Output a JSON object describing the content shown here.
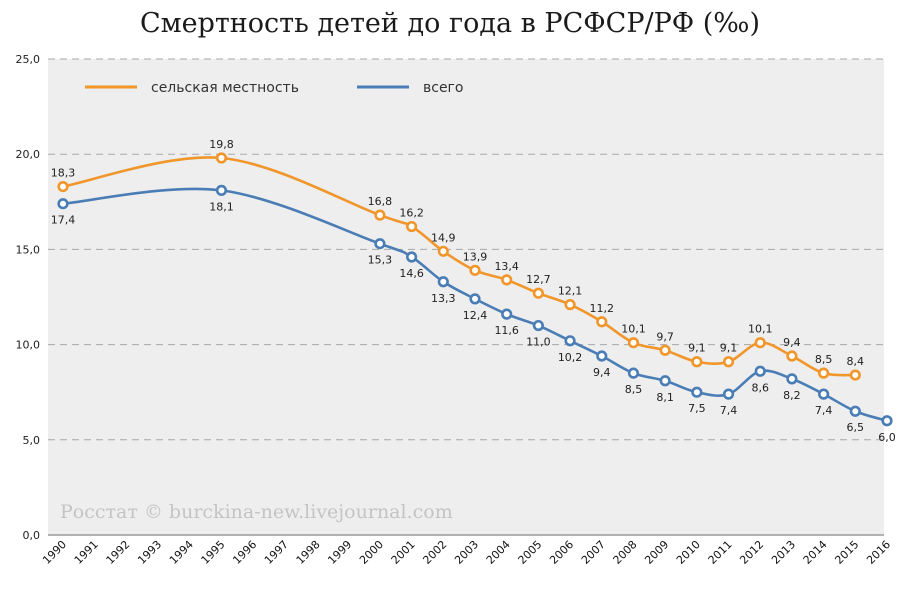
{
  "chart_data": {
    "type": "line",
    "title": "Смертность детей до года в РСФСР/РФ (‰)",
    "xlabel": "",
    "ylabel": "",
    "ylim": [
      0,
      25
    ],
    "yticks": [
      "0,0",
      "5,0",
      "10,0",
      "15,0",
      "20,0",
      "25,0"
    ],
    "categories": [
      "1990",
      "1991",
      "1992",
      "1993",
      "1994",
      "1995",
      "1996",
      "1997",
      "1998",
      "1999",
      "2000",
      "2001",
      "2002",
      "2003",
      "2004",
      "2005",
      "2006",
      "2007",
      "2008",
      "2009",
      "2010",
      "2011",
      "2012",
      "2013",
      "2014",
      "2015",
      "2016"
    ],
    "grid": true,
    "legend_position": "top-left",
    "watermark": "Росстат © burckina-new.livejournal.com",
    "series": [
      {
        "name": "сельская местность",
        "color": "#f0962a",
        "label_position": "above",
        "points": [
          {
            "x": "1990",
            "y": 18.3,
            "label": "18,3"
          },
          {
            "x": "1995",
            "y": 19.8,
            "label": "19,8"
          },
          {
            "x": "2000",
            "y": 16.8,
            "label": "16,8"
          },
          {
            "x": "2001",
            "y": 16.2,
            "label": "16,2"
          },
          {
            "x": "2002",
            "y": 14.9,
            "label": "14,9"
          },
          {
            "x": "2003",
            "y": 13.9,
            "label": "13,9"
          },
          {
            "x": "2004",
            "y": 13.4,
            "label": "13,4"
          },
          {
            "x": "2005",
            "y": 12.7,
            "label": "12,7"
          },
          {
            "x": "2006",
            "y": 12.1,
            "label": "12,1"
          },
          {
            "x": "2007",
            "y": 11.2,
            "label": "11,2"
          },
          {
            "x": "2008",
            "y": 10.1,
            "label": "10,1"
          },
          {
            "x": "2009",
            "y": 9.7,
            "label": "9,7"
          },
          {
            "x": "2010",
            "y": 9.1,
            "label": "9,1"
          },
          {
            "x": "2011",
            "y": 9.1,
            "label": "9,1"
          },
          {
            "x": "2012",
            "y": 10.1,
            "label": "10,1"
          },
          {
            "x": "2013",
            "y": 9.4,
            "label": "9,4"
          },
          {
            "x": "2014",
            "y": 8.5,
            "label": "8,5"
          },
          {
            "x": "2015",
            "y": 8.4,
            "label": "8,4"
          }
        ]
      },
      {
        "name": "всего",
        "color": "#4a7db5",
        "label_position": "below",
        "points": [
          {
            "x": "1990",
            "y": 17.4,
            "label": "17,4"
          },
          {
            "x": "1995",
            "y": 18.1,
            "label": "18,1"
          },
          {
            "x": "2000",
            "y": 15.3,
            "label": "15,3"
          },
          {
            "x": "2001",
            "y": 14.6,
            "label": "14,6"
          },
          {
            "x": "2002",
            "y": 13.3,
            "label": "13,3"
          },
          {
            "x": "2003",
            "y": 12.4,
            "label": "12,4"
          },
          {
            "x": "2004",
            "y": 11.6,
            "label": "11,6"
          },
          {
            "x": "2005",
            "y": 11.0,
            "label": "11,0"
          },
          {
            "x": "2006",
            "y": 10.2,
            "label": "10,2"
          },
          {
            "x": "2007",
            "y": 9.4,
            "label": "9,4"
          },
          {
            "x": "2008",
            "y": 8.5,
            "label": "8,5"
          },
          {
            "x": "2009",
            "y": 8.1,
            "label": "8,1"
          },
          {
            "x": "2010",
            "y": 7.5,
            "label": "7,5"
          },
          {
            "x": "2011",
            "y": 7.4,
            "label": "7,4"
          },
          {
            "x": "2012",
            "y": 8.6,
            "label": "8,6"
          },
          {
            "x": "2013",
            "y": 8.2,
            "label": "8,2"
          },
          {
            "x": "2014",
            "y": 7.4,
            "label": "7,4"
          },
          {
            "x": "2015",
            "y": 6.5,
            "label": "6,5"
          },
          {
            "x": "2016",
            "y": 6.0,
            "label": "6,0"
          }
        ]
      }
    ]
  }
}
